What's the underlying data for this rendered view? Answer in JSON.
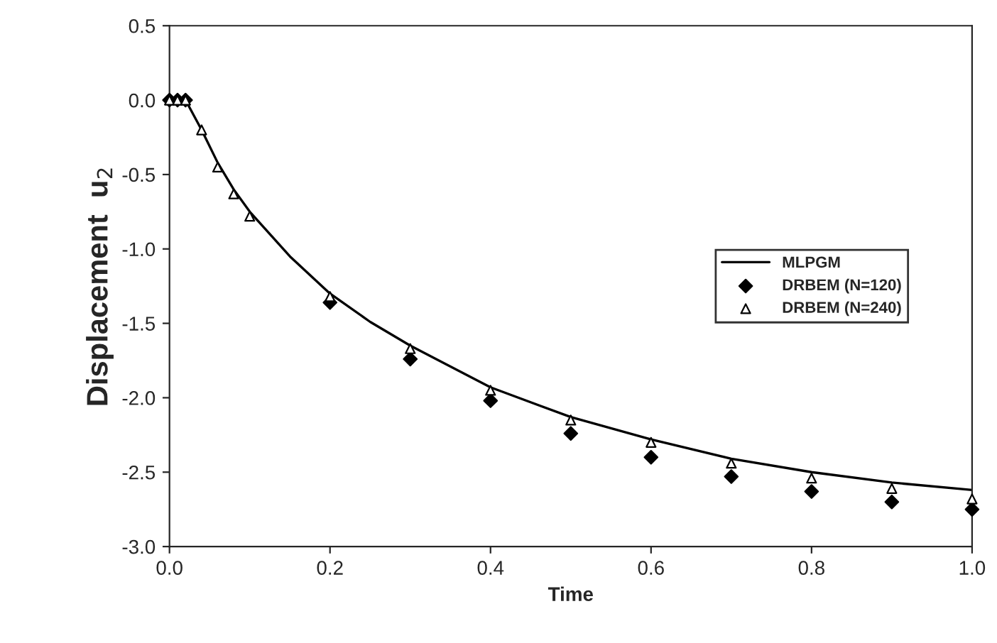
{
  "chart_data": {
    "type": "line",
    "xlabel": "Time",
    "ylabel": "Displacement  u$_{2}$",
    "xlim": [
      0,
      1
    ],
    "xticks": [
      {
        "value": 0,
        "label": "0.0"
      },
      {
        "value": 0.2,
        "label": "0.2"
      },
      {
        "value": 0.4,
        "label": "0.4"
      },
      {
        "value": 0.6,
        "label": "0.6"
      },
      {
        "value": 0.8,
        "label": "0.8"
      },
      {
        "value": 1,
        "label": "1.0"
      }
    ],
    "ylim": [
      -3,
      0.5
    ],
    "yticks": [
      {
        "value": 0.5,
        "label": "0.5"
      },
      {
        "value": 0,
        "label": "0.0"
      },
      {
        "value": -0.5,
        "label": "-0.5"
      },
      {
        "value": -1,
        "label": "-1.0"
      },
      {
        "value": -1.5,
        "label": "-1.5"
      },
      {
        "value": -2,
        "label": "-2.0"
      },
      {
        "value": -2.5,
        "label": "-2.5"
      },
      {
        "value": -3,
        "label": "-3.0"
      }
    ],
    "grid": false,
    "legend": "right",
    "series": [
      {
        "name": "MLPGM",
        "color": "#000000",
        "marker": "none",
        "line_style": "solid",
        "x": [
          0,
          0.02,
          0.04,
          0.06,
          0.08,
          0.1,
          0.15,
          0.2,
          0.25,
          0.3,
          0.4,
          0.5,
          0.6,
          0.7,
          0.8,
          0.9,
          1.0
        ],
        "values": [
          0,
          0,
          -0.2,
          -0.42,
          -0.6,
          -0.75,
          -1.05,
          -1.3,
          -1.49,
          -1.65,
          -1.93,
          -2.13,
          -2.28,
          -2.41,
          -2.5,
          -2.57,
          -2.62
        ]
      },
      {
        "name": "DRBEM (N=120)",
        "type": "scatter",
        "color": "#000000",
        "marker": "diamond",
        "x": [
          0,
          0.01,
          0.02,
          0.04,
          0.06,
          0.08,
          0.1,
          0.2,
          0.3,
          0.4,
          0.5,
          0.6,
          0.7,
          0.8,
          0.9,
          1.0
        ],
        "values": [
          0,
          0,
          0,
          null,
          null,
          null,
          null,
          -1.36,
          -1.74,
          -2.02,
          -2.24,
          -2.4,
          -2.53,
          -2.63,
          -2.7,
          -2.75
        ]
      },
      {
        "name": "DRBEM (N=240)",
        "type": "scatter",
        "color": "#ffffff",
        "marker": "triangle",
        "x": [
          0,
          0.01,
          0.02,
          0.04,
          0.06,
          0.08,
          0.1,
          0.2,
          0.3,
          0.4,
          0.5,
          0.6,
          0.7,
          0.8,
          0.9,
          1.0
        ],
        "values": [
          0,
          0,
          0,
          -0.2,
          -0.45,
          -0.63,
          -0.78,
          -1.32,
          -1.67,
          -1.95,
          -2.15,
          -2.3,
          -2.44,
          -2.54,
          -2.61,
          -2.68
        ]
      }
    ]
  }
}
